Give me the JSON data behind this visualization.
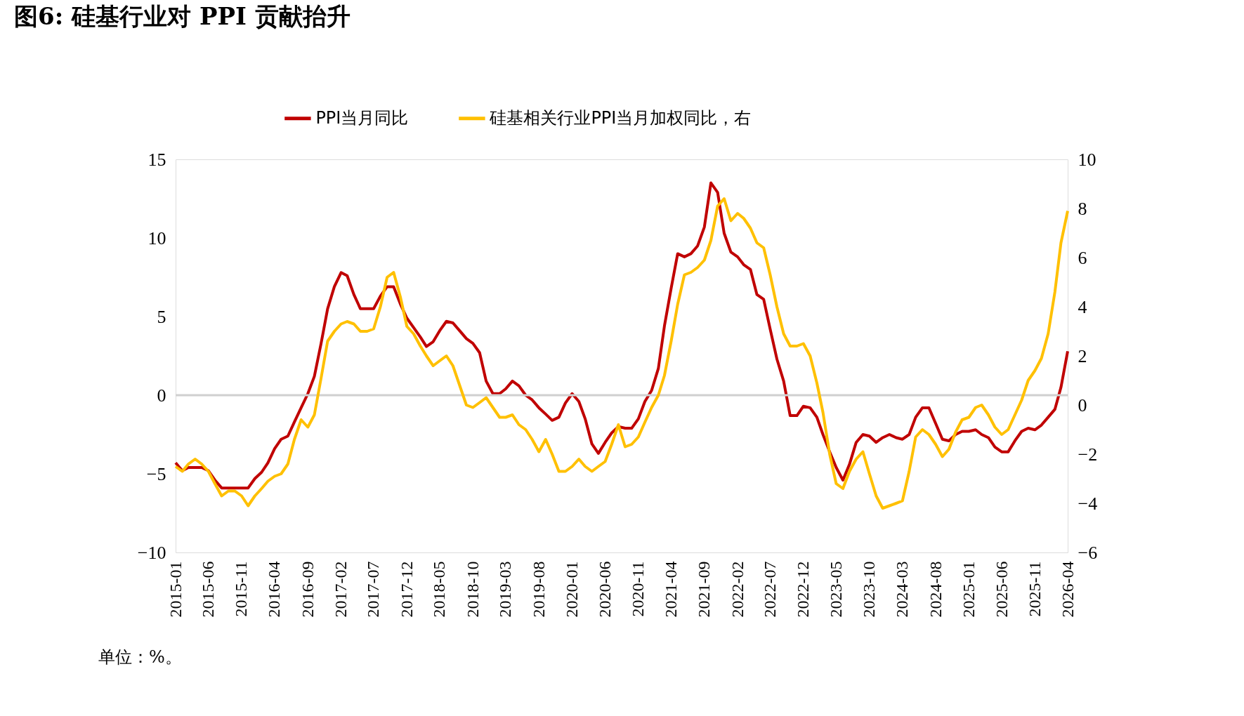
{
  "chart_data": {
    "type": "line",
    "title": "图6: 硅基行业对 PPI 贡献抬升",
    "x": [
      "2015-01",
      "2015-02",
      "2015-03",
      "2015-04",
      "2015-05",
      "2015-06",
      "2015-07",
      "2015-08",
      "2015-09",
      "2015-10",
      "2015-11",
      "2015-12",
      "2016-01",
      "2016-02",
      "2016-03",
      "2016-04",
      "2016-05",
      "2016-06",
      "2016-07",
      "2016-08",
      "2016-09",
      "2016-10",
      "2016-11",
      "2016-12",
      "2017-01",
      "2017-02",
      "2017-03",
      "2017-04",
      "2017-05",
      "2017-06",
      "2017-07",
      "2017-08",
      "2017-09",
      "2017-10",
      "2017-11",
      "2017-12",
      "2018-01",
      "2018-02",
      "2018-03",
      "2018-04",
      "2018-05",
      "2018-06",
      "2018-07",
      "2018-08",
      "2018-09",
      "2018-10",
      "2018-11",
      "2018-12",
      "2019-01",
      "2019-02",
      "2019-03",
      "2019-04",
      "2019-05",
      "2019-06",
      "2019-07",
      "2019-08",
      "2019-09",
      "2019-10",
      "2019-11",
      "2019-12",
      "2020-01",
      "2020-02",
      "2020-03",
      "2020-04",
      "2020-05",
      "2020-06",
      "2020-07",
      "2020-08",
      "2020-09",
      "2020-10",
      "2020-11",
      "2020-12",
      "2021-01",
      "2021-02",
      "2021-03",
      "2021-04",
      "2021-05",
      "2021-06",
      "2021-07",
      "2021-08",
      "2021-09",
      "2021-10",
      "2021-11",
      "2021-12",
      "2022-01",
      "2022-02",
      "2022-03",
      "2022-04",
      "2022-05",
      "2022-06",
      "2022-07",
      "2022-08",
      "2022-09",
      "2022-10",
      "2022-11",
      "2022-12",
      "2023-01",
      "2023-02",
      "2023-03",
      "2023-04",
      "2023-05",
      "2023-06",
      "2023-07",
      "2023-08",
      "2023-09",
      "2023-10",
      "2023-11",
      "2023-12",
      "2024-01",
      "2024-02",
      "2024-03",
      "2024-04",
      "2024-05",
      "2024-06",
      "2024-07",
      "2024-08",
      "2024-09",
      "2024-10",
      "2024-11",
      "2024-12",
      "2025-01",
      "2025-02",
      "2025-03",
      "2025-04",
      "2025-05",
      "2025-06",
      "2025-07",
      "2025-08",
      "2025-09",
      "2025-10",
      "2025-11",
      "2025-12",
      "2026-01",
      "2026-02",
      "2026-03",
      "2026-04"
    ],
    "xlim": [
      "2015-01",
      "2026-04"
    ],
    "xticks": [
      "2015-01",
      "2015-06",
      "2015-11",
      "2016-04",
      "2016-09",
      "2017-02",
      "2017-07",
      "2017-12",
      "2018-05",
      "2018-10",
      "2019-03",
      "2019-08",
      "2020-01",
      "2020-06",
      "2020-11",
      "2021-04",
      "2021-09",
      "2022-02",
      "2022-07",
      "2022-12",
      "2023-05",
      "2023-10",
      "2024-03",
      "2024-08",
      "2025-01",
      "2025-06",
      "2025-11",
      "2026-04"
    ],
    "ylim": [
      -10,
      15
    ],
    "yticks": [
      -10,
      -5,
      0,
      5,
      10,
      15
    ],
    "y2lim": [
      -6,
      10
    ],
    "y2ticks": [
      -6,
      -4,
      -2,
      0,
      2,
      4,
      6,
      8,
      10
    ],
    "legend": "top",
    "grid": false,
    "marker": "none",
    "line_style": "solid",
    "ref_lines": [
      {
        "axis": "y",
        "value": 0,
        "color": "#d0d0d0"
      }
    ],
    "annotations": [
      "单位：%。"
    ],
    "series": [
      {
        "name": "PPI当月同比",
        "color": "#c00000",
        "values": [
          -4.3,
          -4.8,
          -4.6,
          -4.6,
          -4.6,
          -4.8,
          -5.4,
          -5.9,
          -5.9,
          -5.9,
          -5.9,
          -5.9,
          -5.3,
          -4.9,
          -4.3,
          -3.4,
          -2.8,
          -2.6,
          -1.7,
          -0.8,
          0.1,
          1.2,
          3.3,
          5.5,
          6.9,
          7.8,
          7.6,
          6.4,
          5.5,
          5.5,
          5.5,
          6.3,
          6.9,
          6.9,
          5.8,
          4.9,
          4.3,
          3.7,
          3.1,
          3.4,
          4.1,
          4.7,
          4.6,
          4.1,
          3.6,
          3.3,
          2.7,
          0.9,
          0.1,
          0.1,
          0.4,
          0.9,
          0.6,
          0.0,
          -0.3,
          -0.8,
          -1.2,
          -1.6,
          -1.4,
          -0.5,
          0.1,
          -0.4,
          -1.5,
          -3.1,
          -3.7,
          -3.0,
          -2.4,
          -2.0,
          -2.1,
          -2.1,
          -1.5,
          -0.4,
          0.3,
          1.7,
          4.4,
          6.8,
          9.0,
          8.8,
          9.0,
          9.5,
          10.7,
          13.5,
          12.9,
          10.3,
          9.1,
          8.8,
          8.3,
          8.0,
          6.4,
          6.1,
          4.2,
          2.3,
          0.9,
          -1.3,
          -1.3,
          -0.7,
          -0.8,
          -1.4,
          -2.5,
          -3.6,
          -4.6,
          -5.4,
          -4.4,
          -3.0,
          -2.5,
          -2.6,
          -3.0,
          -2.7,
          -2.5,
          -2.7,
          -2.8,
          -2.5,
          -1.4,
          -0.8,
          -0.8,
          -1.8,
          -2.8,
          -2.9,
          -2.5,
          -2.3,
          -2.3,
          -2.2,
          -2.5,
          -2.7,
          -3.3,
          -3.6,
          -3.6,
          -2.9,
          -2.3,
          -2.1,
          -2.2,
          -1.9,
          -1.4,
          -0.9,
          0.5,
          2.8
        ]
      },
      {
        "name": "硅基相关行业PPI当月加权同比，右",
        "color": "#ffc000",
        "axis": "y2",
        "values": [
          -2.5,
          -2.7,
          -2.4,
          -2.2,
          -2.4,
          -2.7,
          -3.2,
          -3.7,
          -3.5,
          -3.5,
          -3.7,
          -4.1,
          -3.7,
          -3.4,
          -3.1,
          -2.9,
          -2.8,
          -2.4,
          -1.4,
          -0.6,
          -0.9,
          -0.4,
          1.1,
          2.6,
          3.0,
          3.3,
          3.4,
          3.3,
          3.0,
          3.0,
          3.1,
          4.0,
          5.2,
          5.4,
          4.4,
          3.2,
          2.9,
          2.4,
          2.0,
          1.6,
          1.8,
          2.0,
          1.6,
          0.8,
          0.0,
          -0.1,
          0.1,
          0.3,
          -0.1,
          -0.5,
          -0.5,
          -0.4,
          -0.8,
          -1.0,
          -1.4,
          -1.9,
          -1.4,
          -2.0,
          -2.7,
          -2.7,
          -2.5,
          -2.2,
          -2.5,
          -2.7,
          -2.5,
          -2.3,
          -1.6,
          -0.8,
          -1.7,
          -1.6,
          -1.3,
          -0.7,
          -0.1,
          0.4,
          1.2,
          2.6,
          4.1,
          5.3,
          5.4,
          5.6,
          5.9,
          6.7,
          8.1,
          8.4,
          7.5,
          7.8,
          7.6,
          7.2,
          6.6,
          6.4,
          5.3,
          4.0,
          2.9,
          2.4,
          2.4,
          2.5,
          2.0,
          0.9,
          -0.3,
          -2.0,
          -3.2,
          -3.4,
          -2.7,
          -2.2,
          -1.9,
          -2.8,
          -3.7,
          -4.2,
          -4.1,
          -4.0,
          -3.9,
          -2.7,
          -1.3,
          -1.0,
          -1.2,
          -1.6,
          -2.1,
          -1.8,
          -1.1,
          -0.6,
          -0.5,
          -0.1,
          0.0,
          -0.4,
          -0.9,
          -1.2,
          -1.0,
          -0.4,
          0.2,
          1.0,
          1.4,
          1.9,
          2.9,
          4.6,
          6.6,
          7.9
        ]
      }
    ]
  }
}
